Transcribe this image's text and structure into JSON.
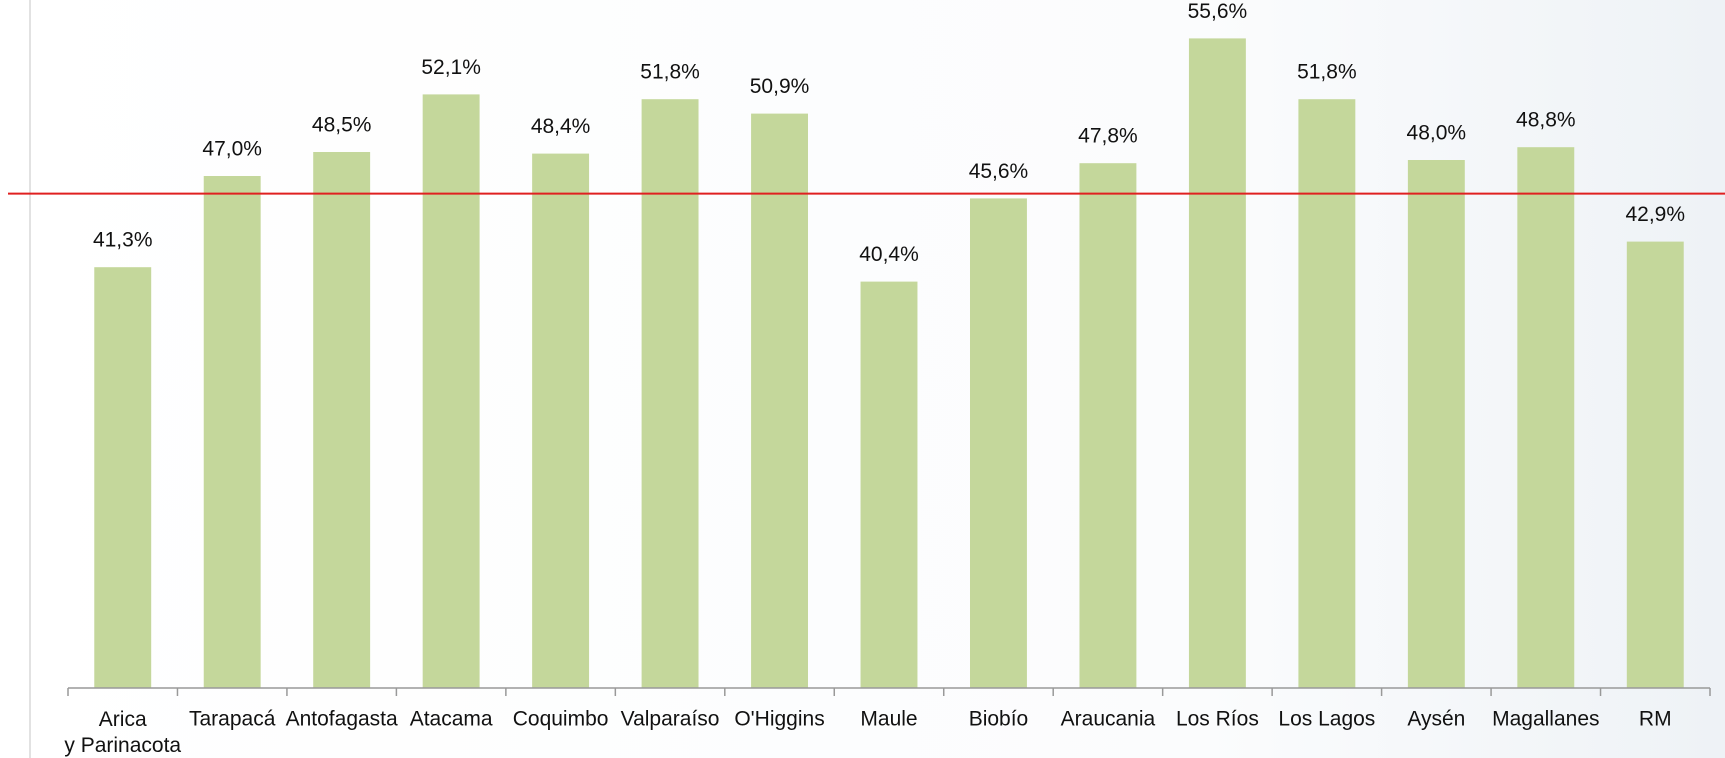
{
  "chart_data": {
    "type": "bar",
    "categories": [
      "Arica\ny Parinacota",
      "Tarapacá",
      "Antofagasta",
      "Atacama",
      "Coquimbo",
      "Valparaíso",
      "O'Higgins",
      "Maule",
      "Biobío",
      "Araucania",
      "Los Ríos",
      "Los Lagos",
      "Aysén",
      "Magallanes",
      "RM"
    ],
    "values": [
      41.3,
      47.0,
      48.5,
      52.1,
      48.4,
      51.8,
      50.9,
      40.4,
      45.6,
      47.8,
      55.6,
      51.8,
      48.0,
      48.8,
      42.9
    ],
    "value_labels": [
      "41,3%",
      "47,0%",
      "48,5%",
      "52,1%",
      "48,4%",
      "51,8%",
      "50,9%",
      "40,4%",
      "45,6%",
      "47,8%",
      "55,6%",
      "51,8%",
      "48,0%",
      "48,8%",
      "42,9%"
    ],
    "color": "#c4d79b",
    "ylim": [
      15,
      58
    ],
    "reference_line": 45.9,
    "reference_color": "#e02020"
  }
}
